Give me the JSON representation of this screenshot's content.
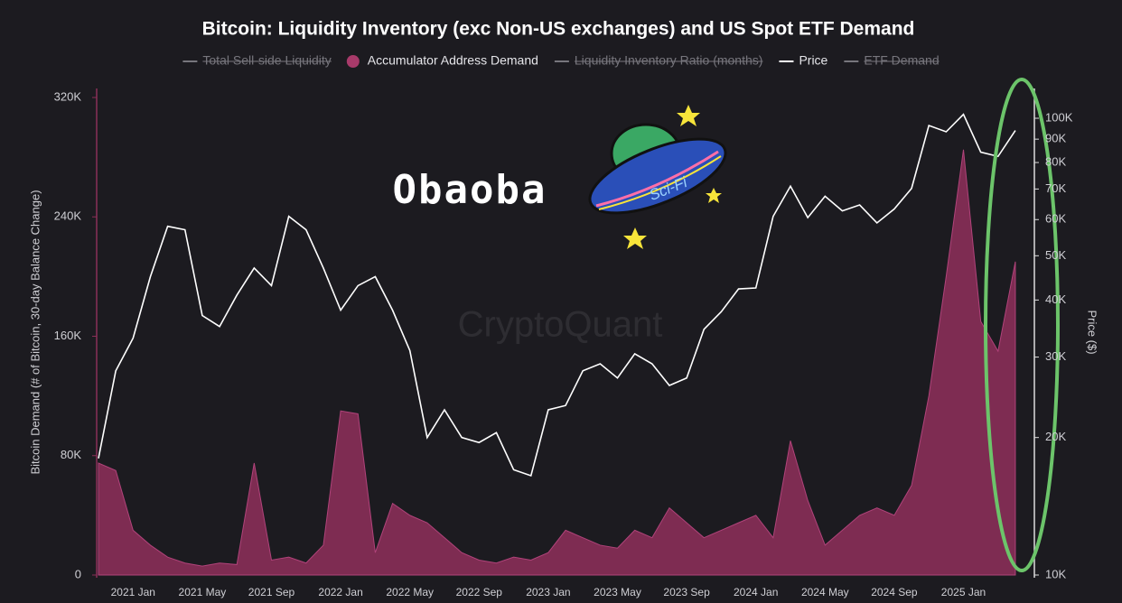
{
  "chart_data": {
    "type": "area-line",
    "title": "Bitcoin: Liquidity Inventory (exc Non-US exchanges) and US Spot ETF Demand",
    "legend": [
      {
        "name": "Total Sell-side Liquidity",
        "hidden": true,
        "marker": "line"
      },
      {
        "name": "Accumulator Address Demand",
        "hidden": false,
        "marker": "dot",
        "color": "#a83a6a"
      },
      {
        "name": "Liquidity Inventory Ratio (months)",
        "hidden": true,
        "marker": "line"
      },
      {
        "name": "Price",
        "hidden": false,
        "marker": "line",
        "color": "#ffffff"
      },
      {
        "name": "ETF Demand",
        "hidden": true,
        "marker": "line"
      }
    ],
    "categories": [
      null,
      null,
      "2021 Jan",
      null,
      null,
      null,
      "2021 May",
      null,
      null,
      null,
      "2021 Sep",
      null,
      null,
      null,
      "2022 Jan",
      null,
      null,
      null,
      "2022 May",
      null,
      null,
      null,
      "2022 Sep",
      null,
      null,
      null,
      "2023 Jan",
      null,
      null,
      null,
      "2023 May",
      null,
      null,
      null,
      "2023 Sep",
      null,
      null,
      null,
      "2024 Jan",
      null,
      null,
      null,
      "2024 May",
      null,
      null,
      null,
      "2024 Sep",
      null,
      null,
      null,
      "2025 Jan",
      null,
      null,
      null
    ],
    "series": [
      {
        "name": "Accumulator Address Demand",
        "kind": "area",
        "color": "#8a2f58",
        "values": [
          75000,
          70000,
          30000,
          20000,
          12000,
          8000,
          6000,
          8000,
          7000,
          75000,
          10000,
          12000,
          8000,
          20000,
          110000,
          108000,
          15000,
          48000,
          40000,
          35000,
          25000,
          15000,
          10000,
          8000,
          12000,
          10000,
          15000,
          30000,
          25000,
          20000,
          18000,
          30000,
          25000,
          45000,
          35000,
          25000,
          30000,
          35000,
          40000,
          25000,
          90000,
          50000,
          20000,
          30000,
          40000,
          45000,
          40000,
          60000,
          120000,
          200000,
          285000,
          170000,
          150000,
          210000
        ]
      },
      {
        "name": "Price",
        "kind": "line",
        "axis": "y2",
        "color": "#ffffff",
        "values": [
          18000,
          28000,
          33000,
          45000,
          58000,
          57000,
          37000,
          35000,
          41000,
          47000,
          43000,
          61000,
          57000,
          47000,
          38000,
          43000,
          45000,
          38000,
          31000,
          20000,
          23000,
          20000,
          19500,
          20500,
          17000,
          16500,
          23000,
          23500,
          28000,
          29000,
          27000,
          30500,
          29000,
          26000,
          27000,
          34500,
          37700,
          42300,
          42500,
          61000,
          71000,
          60600,
          67500,
          62700,
          64600,
          59000,
          63300,
          70200,
          96400,
          93400,
          102000,
          84300,
          82500,
          94000
        ]
      }
    ],
    "y_label": "Bitcoin Demand (# of Bitcoin, 30-day Balance Change)",
    "ylim": [
      0,
      320000
    ],
    "yticks": [
      0,
      {
        "value": 80000,
        "label": "80K"
      },
      {
        "value": 160000,
        "label": "160K"
      },
      {
        "value": 240000,
        "label": "240K"
      },
      {
        "value": 320000,
        "label": "320K"
      }
    ],
    "y2_label": "Price ($)",
    "y2scale": "log",
    "y2lim": [
      10000,
      100000
    ],
    "y2ticks": [
      {
        "value": 10000,
        "label": "10K"
      },
      {
        "value": 20000,
        "label": "20K"
      },
      {
        "value": 30000,
        "label": "30K"
      },
      {
        "value": 40000,
        "label": "40K"
      },
      {
        "value": 50000,
        "label": "50K"
      },
      {
        "value": 60000,
        "label": "60K"
      },
      {
        "value": 70000,
        "label": "70K"
      },
      {
        "value": 80000,
        "label": "80K"
      },
      {
        "value": 90000,
        "label": "90K"
      },
      {
        "value": 100000,
        "label": "100K"
      }
    ],
    "watermark": "CryptoQuant",
    "logo": "Obaoba",
    "sticker": "Sci-Fi"
  }
}
